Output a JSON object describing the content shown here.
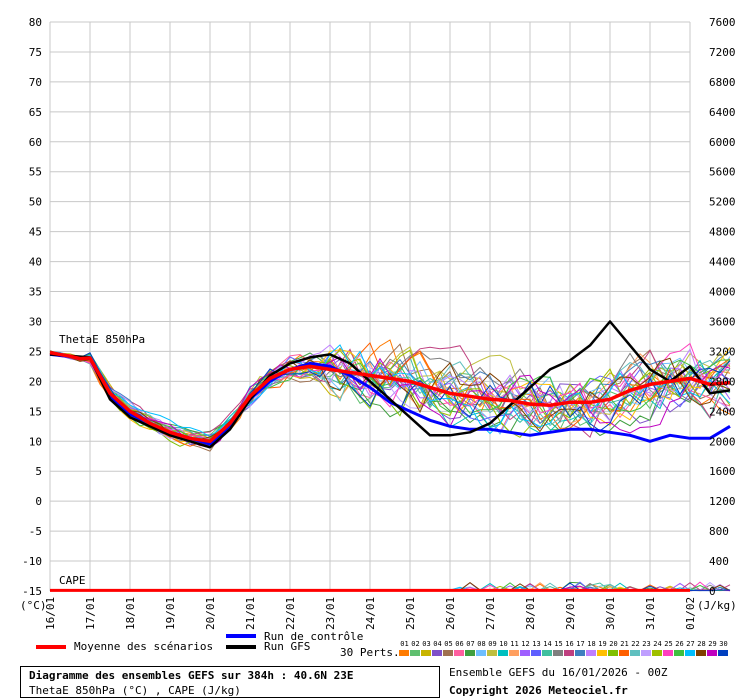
{
  "colors": {
    "grid": "#c8c8c8",
    "mean": "#ff0000",
    "control": "#0000ff",
    "gfs": "#000000"
  },
  "labels": {
    "left_unit": "(°C)",
    "right_unit": "(J/kg)",
    "theta_label": "ThetaE 850hPa",
    "cape_label": "CAPE",
    "legend_mean": "Moyenne des scénarios",
    "legend_control": "Run de contrôle",
    "legend_gfs": "Run GFS",
    "legend_perts": "30 Perts.",
    "title_line1": "Diagramme des ensembles GEFS sur 384h : 40.6N 23E",
    "title_line2": "ThetaE 850hPa (°C) , CAPE (J/kg)",
    "run_info": "Ensemble GEFS du 16/01/2026 - 00Z",
    "copyright": "Copyright 2026 Meteociel.fr"
  },
  "chart_data": {
    "type": "line",
    "x": [
      "16/01",
      "17/01",
      "18/01",
      "19/01",
      "20/01",
      "21/01",
      "22/01",
      "23/01",
      "24/01",
      "25/01",
      "26/01",
      "27/01",
      "28/01",
      "29/01",
      "30/01",
      "31/01",
      "01/02"
    ],
    "ylim": [
      -15,
      80
    ],
    "yticks": [
      -15,
      -10,
      -5,
      0,
      5,
      10,
      15,
      20,
      25,
      30,
      35,
      40,
      45,
      50,
      55,
      60,
      65,
      70,
      75,
      80
    ],
    "y2lim": [
      0,
      7600
    ],
    "y2ticks": [
      0,
      400,
      800,
      1200,
      1600,
      2000,
      2400,
      2800,
      3200,
      3600,
      4000,
      4400,
      4800,
      5200,
      5600,
      6000,
      6400,
      6800,
      7200,
      7600
    ],
    "grid": true,
    "series": [
      {
        "name": "Moyenne des scénarios",
        "values": [
          [
            0,
            24.8
          ],
          [
            0.5,
            24.2
          ],
          [
            0.75,
            23.8
          ],
          [
            1,
            23.9
          ],
          [
            1.5,
            18
          ],
          [
            2,
            15
          ],
          [
            2.5,
            13
          ],
          [
            3,
            11.5
          ],
          [
            3.5,
            10.5
          ],
          [
            4,
            10
          ],
          [
            4.5,
            13
          ],
          [
            5,
            17.5
          ],
          [
            5.5,
            20.5
          ],
          [
            6,
            22
          ],
          [
            6.5,
            22.5
          ],
          [
            7,
            22
          ],
          [
            7.5,
            21.5
          ],
          [
            8,
            21
          ],
          [
            8.5,
            20.5
          ],
          [
            9,
            20
          ],
          [
            9.5,
            19
          ],
          [
            10,
            18
          ],
          [
            10.5,
            17.5
          ],
          [
            11,
            17
          ],
          [
            11.5,
            16.8
          ],
          [
            12,
            16.2
          ],
          [
            12.5,
            16
          ],
          [
            13,
            16.5
          ],
          [
            13.5,
            16.5
          ],
          [
            14,
            17
          ],
          [
            14.5,
            18.5
          ],
          [
            15,
            19.5
          ],
          [
            15.5,
            20
          ],
          [
            16,
            20.5
          ],
          [
            16.5,
            19.5
          ],
          [
            17,
            19.8
          ]
        ]
      },
      {
        "name": "Run de contrôle",
        "values": [
          [
            0,
            24.5
          ],
          [
            1,
            23.8
          ],
          [
            1.5,
            17.5
          ],
          [
            2,
            14.5
          ],
          [
            3,
            11.5
          ],
          [
            4,
            9.5
          ],
          [
            4.5,
            12.5
          ],
          [
            5,
            17
          ],
          [
            5.5,
            20
          ],
          [
            6,
            22
          ],
          [
            6.5,
            23
          ],
          [
            7,
            22.5
          ],
          [
            7.5,
            21
          ],
          [
            8,
            19
          ],
          [
            8.5,
            16.5
          ],
          [
            9,
            15
          ],
          [
            9.5,
            13.5
          ],
          [
            10,
            12.5
          ],
          [
            10.5,
            12
          ],
          [
            11,
            12
          ],
          [
            11.5,
            11.5
          ],
          [
            12,
            11
          ],
          [
            12.5,
            11.5
          ],
          [
            13,
            12
          ],
          [
            13.5,
            12
          ],
          [
            14,
            11.5
          ],
          [
            14.5,
            11
          ],
          [
            15,
            10
          ],
          [
            15.5,
            11
          ],
          [
            16,
            10.5
          ],
          [
            16.5,
            10.5
          ],
          [
            17,
            12.5
          ]
        ]
      },
      {
        "name": "Run GFS",
        "values": [
          [
            0,
            24.5
          ],
          [
            1,
            24
          ],
          [
            1.5,
            17
          ],
          [
            2,
            14
          ],
          [
            3,
            11
          ],
          [
            4,
            9
          ],
          [
            4.5,
            12
          ],
          [
            5,
            17
          ],
          [
            5.5,
            21
          ],
          [
            6,
            23
          ],
          [
            6.5,
            24
          ],
          [
            7,
            24.5
          ],
          [
            7.5,
            23
          ],
          [
            8,
            20
          ],
          [
            8.5,
            17
          ],
          [
            9,
            14
          ],
          [
            9.5,
            11
          ],
          [
            10,
            11
          ],
          [
            10.5,
            11.5
          ],
          [
            11,
            13
          ],
          [
            11.5,
            16
          ],
          [
            12,
            19
          ],
          [
            12.5,
            22
          ],
          [
            13,
            23.5
          ],
          [
            13.5,
            26
          ],
          [
            14,
            30
          ],
          [
            14.5,
            26
          ],
          [
            15,
            22
          ],
          [
            15.5,
            20
          ],
          [
            16,
            22.5
          ],
          [
            16.5,
            18
          ],
          [
            17,
            18.5
          ]
        ]
      }
    ],
    "perturbation_colors": [
      "#ff7b00",
      "#5fbf6f",
      "#c8b400",
      "#7f50c8",
      "#9f7050",
      "#ff5f9f",
      "#3f9f3f",
      "#6fbfff",
      "#bfbf3f",
      "#00bfbf",
      "#ff9f5f",
      "#9f5fff",
      "#5f5fff",
      "#3fbf9f",
      "#7f7f7f",
      "#bf3f7f",
      "#3f7fbf",
      "#bf7fff",
      "#ffbf00",
      "#7fbf00",
      "#ff5f00",
      "#5fbfbf",
      "#bf9fff",
      "#9fbf00",
      "#ff3fbf",
      "#3fbf3f",
      "#00bfff",
      "#7f3f00",
      "#bf00bf",
      "#003fbf"
    ],
    "pert_ids": [
      "01",
      "02",
      "03",
      "04",
      "05",
      "06",
      "07",
      "08",
      "09",
      "10",
      "11",
      "12",
      "13",
      "14",
      "15",
      "16",
      "17",
      "18",
      "19",
      "20",
      "21",
      "22",
      "23",
      "24",
      "25",
      "26",
      "27",
      "28",
      "29",
      "30"
    ]
  }
}
